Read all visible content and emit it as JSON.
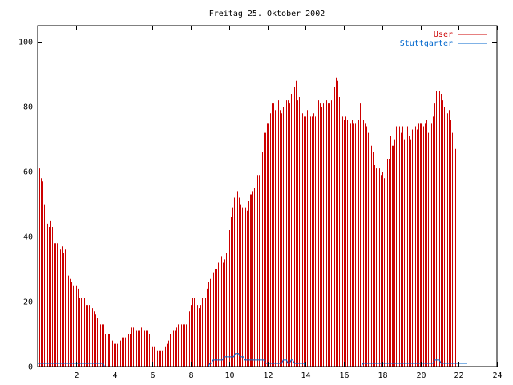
{
  "chart_data": {
    "type": "bar",
    "title": "Freitag 25. Oktober 2002",
    "xlabel": "",
    "ylabel": "",
    "xlim": [
      0,
      24
    ],
    "ylim": [
      0,
      105
    ],
    "x_ticks": [
      2,
      4,
      6,
      8,
      10,
      12,
      14,
      16,
      18,
      20,
      22,
      24
    ],
    "y_ticks": [
      0,
      20,
      40,
      60,
      80,
      100
    ],
    "grid": false,
    "legend_position": "top-right",
    "x_step_hours": 0.0833,
    "series": [
      {
        "name": "User",
        "color": "#cc0000",
        "style": "impulses",
        "values": [
          63,
          61,
          58,
          57,
          50,
          48,
          44,
          43,
          45,
          43,
          38,
          38,
          38,
          37,
          36,
          37,
          35,
          36,
          30,
          28,
          27,
          26,
          25,
          25,
          25,
          24,
          21,
          21,
          21,
          21,
          19,
          19,
          19,
          19,
          18,
          17,
          16,
          15,
          14,
          13,
          13,
          13,
          10,
          10,
          10,
          10,
          9,
          8,
          7,
          7,
          7,
          8,
          8,
          9,
          9,
          9,
          10,
          10,
          10,
          12,
          12,
          12,
          11,
          11,
          11,
          12,
          11,
          11,
          11,
          11,
          10,
          10,
          6,
          6,
          5,
          5,
          5,
          5,
          5,
          6,
          6,
          7,
          8,
          10,
          11,
          11,
          11,
          12,
          13,
          13,
          13,
          13,
          13,
          13,
          16,
          17,
          19,
          21,
          21,
          19,
          19,
          18,
          19,
          21,
          21,
          21,
          24,
          26,
          27,
          28,
          29,
          30,
          30,
          32,
          34,
          34,
          32,
          33,
          35,
          38,
          42,
          46,
          49,
          52,
          52,
          54,
          52,
          50,
          49,
          48,
          49,
          48,
          51,
          53,
          53,
          54,
          55,
          57,
          59,
          59,
          63,
          66,
          72,
          72,
          75,
          78,
          78,
          81,
          81,
          79,
          80,
          82,
          79,
          78,
          80,
          82,
          82,
          82,
          81,
          84,
          81,
          86,
          88,
          82,
          83,
          83,
          78,
          77,
          77,
          79,
          78,
          77,
          77,
          78,
          77,
          81,
          82,
          81,
          80,
          81,
          80,
          82,
          81,
          81,
          82,
          84,
          86,
          89,
          88,
          83,
          84,
          77,
          76,
          77,
          76,
          77,
          75,
          76,
          75,
          75,
          77,
          76,
          81,
          77,
          76,
          75,
          74,
          72,
          70,
          68,
          66,
          62,
          61,
          59,
          61,
          59,
          60,
          58,
          60,
          64,
          64,
          71,
          68,
          68,
          70,
          74,
          74,
          74,
          72,
          74,
          70,
          75,
          74,
          71,
          70,
          73,
          72,
          74,
          73,
          75,
          75,
          75,
          74,
          75,
          76,
          72,
          71,
          75,
          77,
          81,
          85,
          87,
          85,
          84,
          82,
          80,
          79,
          78,
          79,
          76,
          72,
          70,
          67
        ]
      },
      {
        "name": "Stuttgarter",
        "color": "#0066cc",
        "style": "lines",
        "values": [
          1,
          1,
          1,
          1,
          1,
          1,
          1,
          1,
          1,
          1,
          1,
          1,
          1,
          1,
          1,
          1,
          1,
          1,
          1,
          1,
          1,
          1,
          1,
          1,
          1,
          1,
          1,
          1,
          1,
          1,
          1,
          1,
          1,
          1,
          1,
          1,
          1,
          1,
          1,
          1,
          1,
          1,
          0,
          0,
          0,
          0,
          0,
          0,
          0,
          0,
          0,
          0,
          0,
          0,
          0,
          0,
          0,
          0,
          0,
          0,
          0,
          0,
          0,
          0,
          0,
          0,
          0,
          0,
          0,
          0,
          0,
          0,
          0,
          0,
          0,
          0,
          0,
          0,
          0,
          0,
          0,
          0,
          0,
          0,
          0,
          0,
          0,
          0,
          0,
          0,
          0,
          0,
          0,
          0,
          0,
          0,
          0,
          0,
          0,
          0,
          0,
          0,
          0,
          0,
          0,
          0,
          0,
          0,
          1,
          1,
          2,
          2,
          2,
          2,
          2,
          2,
          2,
          3,
          3,
          3,
          3,
          3,
          3,
          3,
          4,
          4,
          4,
          3,
          3,
          3,
          2,
          2,
          2,
          2,
          2,
          2,
          2,
          2,
          2,
          2,
          2,
          2,
          2,
          1,
          1,
          1,
          1,
          1,
          1,
          1,
          1,
          1,
          1,
          1,
          2,
          2,
          2,
          1,
          1,
          2,
          2,
          1,
          1,
          1,
          1,
          1,
          1,
          1,
          0,
          0,
          0,
          0,
          0,
          0,
          0,
          0,
          0,
          0,
          0,
          0,
          0,
          0,
          0,
          0,
          0,
          0,
          0,
          0,
          0,
          0,
          0,
          0,
          0,
          0,
          0,
          0,
          0,
          0,
          0,
          0,
          0,
          0,
          0,
          0,
          1,
          1,
          1,
          1,
          1,
          1,
          1,
          1,
          1,
          1,
          1,
          1,
          1,
          1,
          1,
          1,
          1,
          1,
          1,
          1,
          1,
          1,
          1,
          1,
          1,
          1,
          1,
          1,
          1,
          1,
          1,
          1,
          1,
          1,
          1,
          1,
          1,
          1,
          1,
          1,
          1,
          1,
          1,
          1,
          1,
          2,
          2,
          2,
          2,
          1,
          1,
          1,
          1,
          1,
          1,
          1,
          1,
          1,
          1,
          1,
          1,
          1,
          1,
          1,
          1,
          1
        ]
      }
    ]
  }
}
